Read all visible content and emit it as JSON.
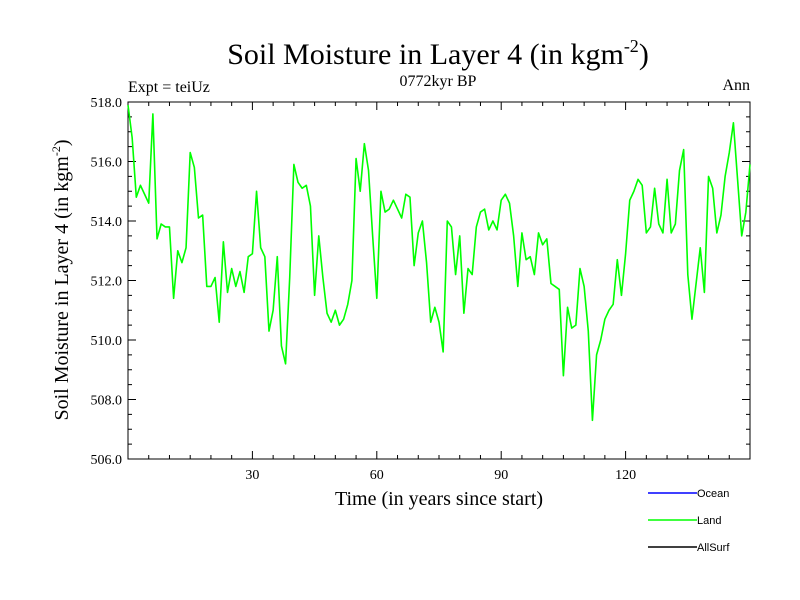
{
  "chart_data": {
    "type": "line",
    "title_main": "Soil Moisture in Layer 4 (in kgm",
    "title_sup": "-2",
    "title_close": ")",
    "subtitle": "0772kyr BP",
    "left_label": "Expt = teiUz",
    "right_label": "Ann",
    "xlabel": "Time (in years since start)",
    "ylabel_main": "Soil Moisture in Layer 4 (in kgm",
    "ylabel_sup": "-2",
    "ylabel_close": ")",
    "xlim": [
      0,
      150
    ],
    "ylim": [
      506,
      518
    ],
    "x_ticks": [
      30,
      60,
      90,
      120
    ],
    "x_tick_labels": [
      "30",
      "60",
      "90",
      "120"
    ],
    "y_ticks": [
      506,
      508,
      510,
      512,
      514,
      516,
      518
    ],
    "y_tick_labels": [
      "506.0",
      "508.0",
      "510.0",
      "512.0",
      "514.0",
      "516.0",
      "518.0"
    ],
    "x_start": 0,
    "legend_placement": "bottom-right",
    "legend": [
      {
        "name": "Ocean",
        "color": "#0000ff"
      },
      {
        "name": "Land",
        "color": "#00ff00"
      },
      {
        "name": "AllSurf",
        "color": "#000000"
      }
    ],
    "series": [
      {
        "name": "Land",
        "color": "#00ff00",
        "values": [
          517.9,
          516.8,
          514.8,
          515.2,
          514.9,
          514.6,
          517.6,
          513.4,
          513.9,
          513.8,
          513.8,
          511.4,
          513.0,
          512.6,
          513.1,
          516.3,
          515.8,
          514.1,
          514.2,
          511.8,
          511.8,
          512.1,
          510.6,
          513.3,
          511.6,
          512.4,
          511.8,
          512.3,
          511.6,
          512.8,
          512.9,
          515.0,
          513.1,
          512.8,
          510.3,
          511.0,
          512.8,
          509.8,
          509.2,
          512.1,
          515.9,
          515.3,
          515.1,
          515.2,
          514.5,
          511.5,
          513.5,
          512.1,
          510.9,
          510.6,
          511.0,
          510.5,
          510.7,
          511.2,
          512.0,
          516.1,
          515.0,
          516.6,
          515.7,
          513.5,
          511.4,
          515.0,
          514.3,
          514.4,
          514.7,
          514.4,
          514.1,
          514.9,
          514.8,
          512.5,
          513.6,
          514.0,
          512.6,
          510.6,
          511.1,
          510.6,
          509.6,
          514.0,
          513.8,
          512.2,
          513.5,
          510.9,
          512.4,
          512.2,
          513.8,
          514.3,
          514.4,
          513.7,
          514.0,
          513.7,
          514.7,
          514.9,
          514.6,
          513.5,
          511.8,
          513.6,
          512.7,
          512.8,
          512.2,
          513.6,
          513.2,
          513.4,
          511.9,
          511.8,
          511.7,
          508.8,
          511.1,
          510.4,
          510.5,
          512.4,
          511.8,
          510.3,
          507.3,
          509.5,
          510.0,
          510.7,
          511.0,
          511.2,
          512.7,
          511.5,
          512.9,
          514.7,
          515.0,
          515.4,
          515.2,
          513.6,
          513.8,
          515.1,
          513.9,
          513.6,
          515.4,
          513.6,
          513.9,
          515.7,
          516.4,
          512.2,
          510.7,
          511.9,
          513.1,
          511.6,
          515.5,
          515.1,
          513.6,
          514.2,
          515.5,
          516.3,
          517.3,
          515.4,
          513.5,
          514.3,
          515.9
        ]
      }
    ]
  }
}
